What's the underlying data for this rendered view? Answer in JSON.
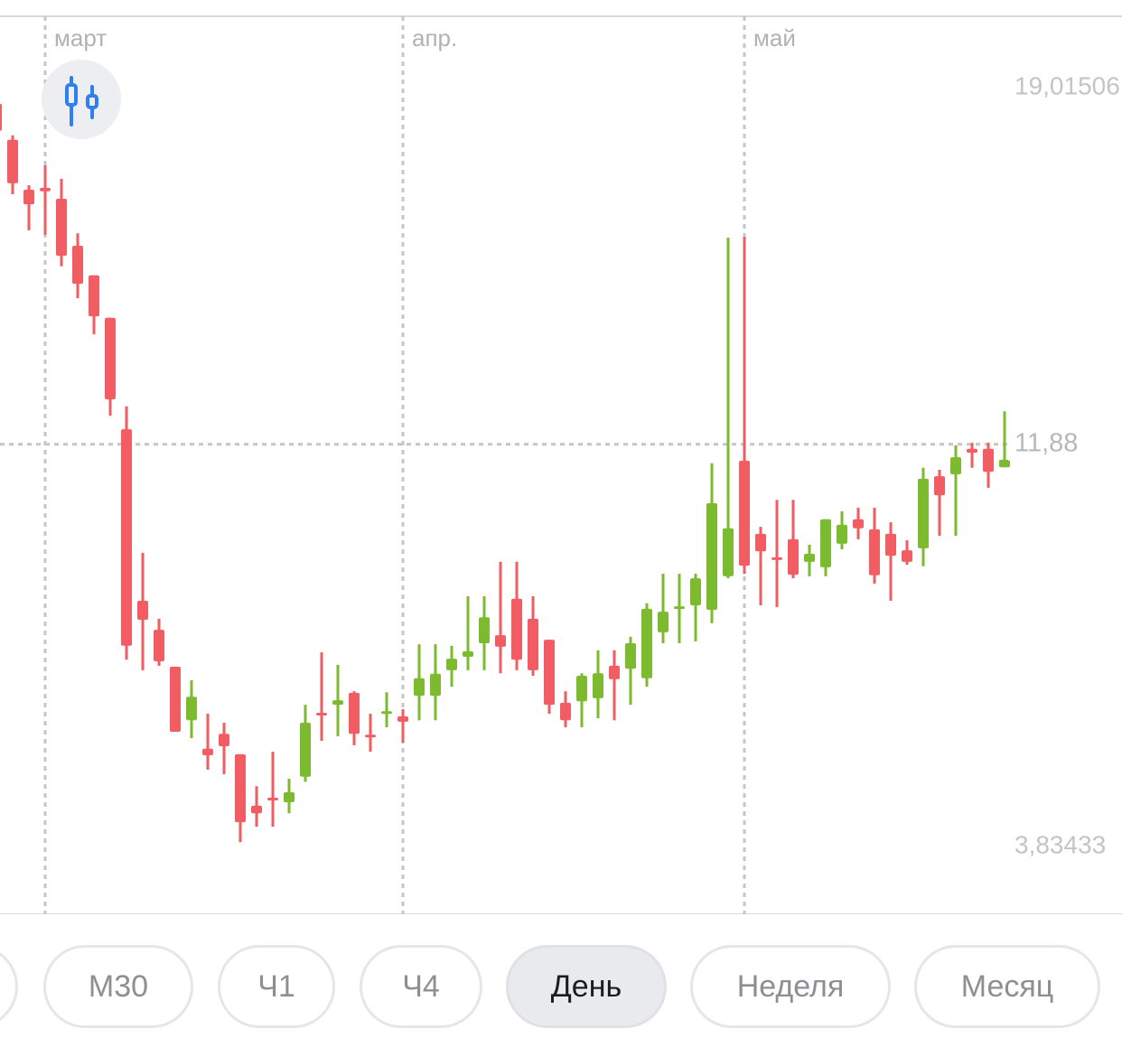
{
  "chart_data": {
    "type": "candlestick",
    "categories": [
      null,
      null,
      null,
      "март",
      null,
      null,
      null,
      null,
      null,
      null,
      null,
      null,
      null,
      null,
      null,
      null,
      null,
      null,
      null,
      null,
      null,
      null,
      null,
      null,
      null,
      "апр.",
      null,
      null,
      null,
      null,
      null,
      null,
      null,
      null,
      null,
      null,
      null,
      null,
      null,
      null,
      null,
      null,
      null,
      null,
      null,
      null,
      "май",
      null,
      null,
      null,
      null,
      null,
      null,
      null,
      null,
      null,
      null,
      null,
      null,
      null,
      null,
      null,
      null
    ],
    "open": [
      18.69,
      17.97,
      16.97,
      17.01,
      16.79,
      15.85,
      15.26,
      14.41,
      12.18,
      8.75,
      8.17,
      7.43,
      6.36,
      5.79,
      6.09,
      5.68,
      4.65,
      4.81,
      4.72,
      5.23,
      6.51,
      6.67,
      6.91,
      6.07,
      6.51,
      6.44,
      6.85,
      6.85,
      7.36,
      7.63,
      7.9,
      8.06,
      8.79,
      8.39,
      7.97,
      6.71,
      6.74,
      6.8,
      7.45,
      7.39,
      7.2,
      8.12,
      8.61,
      8.66,
      8.57,
      9.24,
      11.55,
      10.09,
      9.62,
      9.98,
      9.53,
      9.42,
      9.89,
      10.38,
      10.18,
      10.09,
      9.76,
      9.8,
      11.24,
      11.28,
      11.79,
      11.79,
      11.42
    ],
    "high": [
      18.74,
      18.06,
      17.06,
      17.46,
      17.19,
      16.1,
      15.26,
      14.41,
      12.64,
      9.71,
      8.39,
      7.43,
      7.16,
      6.49,
      6.31,
      5.68,
      5.04,
      5.73,
      5.19,
      6.67,
      7.72,
      7.47,
      6.94,
      6.49,
      6.92,
      6.58,
      7.88,
      7.88,
      7.85,
      8.84,
      8.84,
      9.53,
      9.53,
      8.84,
      7.97,
      6.94,
      7.3,
      7.76,
      7.76,
      8.03,
      8.7,
      9.29,
      9.29,
      9.29,
      11.5,
      16.01,
      16.03,
      10.23,
      10.77,
      10.77,
      9.87,
      10.38,
      10.54,
      10.61,
      10.61,
      10.32,
      9.96,
      11.41,
      11.37,
      11.86,
      11.91,
      11.91,
      12.54
    ],
    "low": [
      18.06,
      16.88,
      16.16,
      16.07,
      15.44,
      14.8,
      14.08,
      12.45,
      7.57,
      7.36,
      7.45,
      6.13,
      6.0,
      5.37,
      5.28,
      3.92,
      4.23,
      4.23,
      4.5,
      5.13,
      5.95,
      6.04,
      5.86,
      5.73,
      6.22,
      5.91,
      6.36,
      6.36,
      7.03,
      7.36,
      7.36,
      7.3,
      7.36,
      7.25,
      6.49,
      6.22,
      6.22,
      6.4,
      6.36,
      6.67,
      7.03,
      7.9,
      7.9,
      7.94,
      8.3,
      9.2,
      9.29,
      8.66,
      8.62,
      9.2,
      9.24,
      9.24,
      9.78,
      9.98,
      9.09,
      8.75,
      9.47,
      9.44,
      10.05,
      10.05,
      11.41,
      11.01,
      11.42
    ],
    "close": [
      18.15,
      17.1,
      16.68,
      16.94,
      15.65,
      15.09,
      14.44,
      12.78,
      7.85,
      8.37,
      7.54,
      6.13,
      6.83,
      5.66,
      5.84,
      4.32,
      4.5,
      4.76,
      4.92,
      6.31,
      6.47,
      6.76,
      6.09,
      6.04,
      6.54,
      6.33,
      7.2,
      7.29,
      7.59,
      7.74,
      8.42,
      7.83,
      7.57,
      7.36,
      6.67,
      6.36,
      7.25,
      7.3,
      7.18,
      7.9,
      8.59,
      8.53,
      8.64,
      9.2,
      10.7,
      10.2,
      9.45,
      9.74,
      9.58,
      9.27,
      9.69,
      10.38,
      10.27,
      10.2,
      9.26,
      9.65,
      9.53,
      11.19,
      10.86,
      11.62,
      11.71,
      11.33,
      11.57
    ],
    "up_color": "#7cba2f",
    "down_color": "#f25d63",
    "ylim": [
      2.48,
      20.44
    ],
    "yticks": [
      {
        "value": 19.01506,
        "label": "19,01506"
      },
      {
        "value": 3.83433,
        "label": "3,83433"
      }
    ],
    "price_line": {
      "value": 11.88,
      "label": "11,88"
    },
    "xgrid": true
  },
  "timeframes": {
    "options": [
      "M30",
      "Ч1",
      "Ч4",
      "День",
      "Неделя",
      "Месяц"
    ],
    "selected_index": 3
  }
}
